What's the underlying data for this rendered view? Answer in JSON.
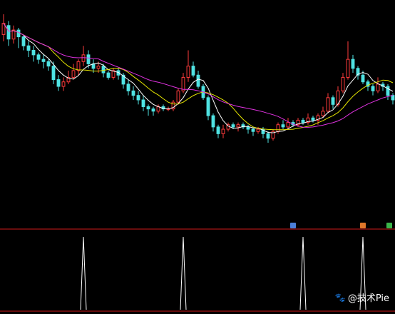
{
  "chart_data": {
    "type": "candlestick",
    "candles": [
      {
        "o": 91,
        "c": 96,
        "h": 100,
        "l": 88
      },
      {
        "o": 95,
        "c": 89,
        "h": 97,
        "l": 86
      },
      {
        "o": 89,
        "c": 93,
        "h": 95,
        "l": 87
      },
      {
        "o": 93,
        "c": 90,
        "h": 94,
        "l": 85
      },
      {
        "o": 90,
        "c": 86,
        "h": 91,
        "l": 84
      },
      {
        "o": 86,
        "c": 84,
        "h": 88,
        "l": 81
      },
      {
        "o": 84,
        "c": 82,
        "h": 86,
        "l": 79
      },
      {
        "o": 82,
        "c": 80,
        "h": 83,
        "l": 78
      },
      {
        "o": 80,
        "c": 79,
        "h": 82,
        "l": 76
      },
      {
        "o": 79,
        "c": 77,
        "h": 80,
        "l": 75
      },
      {
        "o": 77,
        "c": 71,
        "h": 79,
        "l": 69
      },
      {
        "o": 71,
        "c": 68,
        "h": 73,
        "l": 66
      },
      {
        "o": 68,
        "c": 70,
        "h": 72,
        "l": 66
      },
      {
        "o": 70,
        "c": 72,
        "h": 75,
        "l": 69
      },
      {
        "o": 72,
        "c": 75,
        "h": 78,
        "l": 71
      },
      {
        "o": 75,
        "c": 79,
        "h": 80,
        "l": 73
      },
      {
        "o": 79,
        "c": 82,
        "h": 86,
        "l": 77
      },
      {
        "o": 82,
        "c": 78,
        "h": 84,
        "l": 76
      },
      {
        "o": 78,
        "c": 76,
        "h": 80,
        "l": 74
      },
      {
        "o": 76,
        "c": 77,
        "h": 79,
        "l": 74
      },
      {
        "o": 77,
        "c": 74,
        "h": 78,
        "l": 72
      },
      {
        "o": 74,
        "c": 72,
        "h": 75,
        "l": 71
      },
      {
        "o": 72,
        "c": 75,
        "h": 76,
        "l": 71
      },
      {
        "o": 75,
        "c": 73,
        "h": 76,
        "l": 71
      },
      {
        "o": 73,
        "c": 69,
        "h": 74,
        "l": 67
      },
      {
        "o": 69,
        "c": 66,
        "h": 71,
        "l": 64
      },
      {
        "o": 66,
        "c": 64,
        "h": 68,
        "l": 62
      },
      {
        "o": 64,
        "c": 62,
        "h": 66,
        "l": 60
      },
      {
        "o": 62,
        "c": 59,
        "h": 64,
        "l": 57
      },
      {
        "o": 59,
        "c": 58,
        "h": 60,
        "l": 55
      },
      {
        "o": 58,
        "c": 57,
        "h": 59,
        "l": 55
      },
      {
        "o": 57,
        "c": 59,
        "h": 60,
        "l": 56
      },
      {
        "o": 59,
        "c": 58,
        "h": 60,
        "l": 57
      },
      {
        "o": 58,
        "c": 58,
        "h": 59,
        "l": 57
      },
      {
        "o": 58,
        "c": 61,
        "h": 62,
        "l": 57
      },
      {
        "o": 61,
        "c": 66,
        "h": 67,
        "l": 60
      },
      {
        "o": 66,
        "c": 72,
        "h": 74,
        "l": 65
      },
      {
        "o": 72,
        "c": 77,
        "h": 84,
        "l": 70
      },
      {
        "o": 77,
        "c": 73,
        "h": 79,
        "l": 72
      },
      {
        "o": 73,
        "c": 68,
        "h": 75,
        "l": 67
      },
      {
        "o": 68,
        "c": 63,
        "h": 69,
        "l": 62
      },
      {
        "o": 63,
        "c": 55,
        "h": 64,
        "l": 53
      },
      {
        "o": 55,
        "c": 50,
        "h": 56,
        "l": 48
      },
      {
        "o": 50,
        "c": 47,
        "h": 51,
        "l": 45
      },
      {
        "o": 47,
        "c": 49,
        "h": 51,
        "l": 45
      },
      {
        "o": 49,
        "c": 51,
        "h": 52,
        "l": 48
      },
      {
        "o": 51,
        "c": 50,
        "h": 52,
        "l": 49
      },
      {
        "o": 50,
        "c": 51,
        "h": 52,
        "l": 48
      },
      {
        "o": 51,
        "c": 50,
        "h": 52,
        "l": 49
      },
      {
        "o": 50,
        "c": 49,
        "h": 51,
        "l": 47
      },
      {
        "o": 49,
        "c": 48,
        "h": 50,
        "l": 46
      },
      {
        "o": 48,
        "c": 49,
        "h": 50,
        "l": 47
      },
      {
        "o": 49,
        "c": 47,
        "h": 50,
        "l": 45
      },
      {
        "o": 47,
        "c": 45,
        "h": 48,
        "l": 43
      },
      {
        "o": 45,
        "c": 48,
        "h": 49,
        "l": 44
      },
      {
        "o": 48,
        "c": 51,
        "h": 52,
        "l": 47
      },
      {
        "o": 51,
        "c": 50,
        "h": 53,
        "l": 49
      },
      {
        "o": 50,
        "c": 52,
        "h": 54,
        "l": 49
      },
      {
        "o": 52,
        "c": 51,
        "h": 53,
        "l": 50
      },
      {
        "o": 51,
        "c": 53,
        "h": 54,
        "l": 50
      },
      {
        "o": 53,
        "c": 52,
        "h": 54,
        "l": 51
      },
      {
        "o": 52,
        "c": 54,
        "h": 56,
        "l": 51
      },
      {
        "o": 54,
        "c": 53,
        "h": 55,
        "l": 52
      },
      {
        "o": 53,
        "c": 55,
        "h": 56,
        "l": 51
      },
      {
        "o": 55,
        "c": 57,
        "h": 59,
        "l": 54
      },
      {
        "o": 57,
        "c": 63,
        "h": 65,
        "l": 56
      },
      {
        "o": 63,
        "c": 60,
        "h": 64,
        "l": 58
      },
      {
        "o": 60,
        "c": 66,
        "h": 68,
        "l": 59
      },
      {
        "o": 66,
        "c": 72,
        "h": 74,
        "l": 65
      },
      {
        "o": 72,
        "c": 80,
        "h": 88,
        "l": 71
      },
      {
        "o": 80,
        "c": 76,
        "h": 82,
        "l": 74
      },
      {
        "o": 76,
        "c": 73,
        "h": 77,
        "l": 71
      },
      {
        "o": 73,
        "c": 70,
        "h": 75,
        "l": 69
      },
      {
        "o": 70,
        "c": 68,
        "h": 71,
        "l": 66
      },
      {
        "o": 68,
        "c": 66,
        "h": 69,
        "l": 64
      },
      {
        "o": 66,
        "c": 69,
        "h": 72,
        "l": 65
      },
      {
        "o": 69,
        "c": 68,
        "h": 70,
        "l": 66
      },
      {
        "o": 68,
        "c": 64,
        "h": 69,
        "l": 62
      },
      {
        "o": 64,
        "c": 62,
        "h": 65,
        "l": 60
      }
    ],
    "ma_colors": [
      "#ffffff",
      "#e3e300",
      "#e032e0"
    ],
    "signal_positions": [
      16,
      36,
      60,
      72
    ],
    "signal_badges": [
      {
        "index": 58,
        "color": "#4a7fd8"
      },
      {
        "index": 72,
        "color": "#e0782a"
      },
      {
        "index": 87,
        "color": "#3ab54a"
      }
    ],
    "up_color": "#ff3b3b",
    "down_color": "#4fe3e3",
    "divider_color": "#d01a1a",
    "signal_color": "#ffffff"
  },
  "watermark": {
    "icon": "paw-icon",
    "text": "@技术Pie"
  }
}
